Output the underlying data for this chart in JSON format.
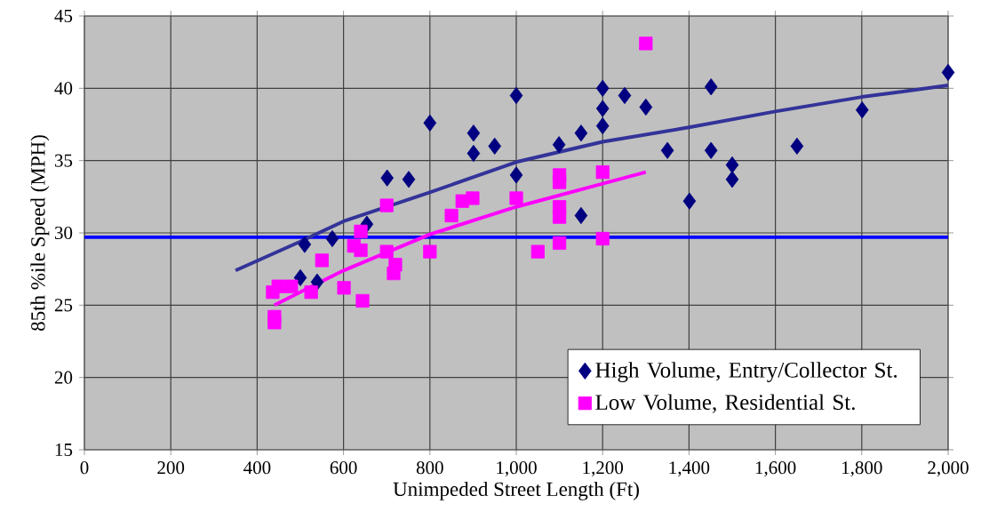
{
  "chart_data": {
    "type": "scatter",
    "xlabel": "Unimpeded  Street  Length  (Ft)",
    "ylabel": "85th  %ile  Speed  (MPH)",
    "xlim": [
      0,
      2000
    ],
    "ylim": [
      15,
      45
    ],
    "xticks": [
      0,
      200,
      400,
      600,
      800,
      {
        "value": 1000,
        "label": "1,000"
      },
      {
        "value": 1200,
        "label": "1,200"
      },
      {
        "value": 1400,
        "label": "1,400"
      },
      {
        "value": 1600,
        "label": "1,600"
      },
      {
        "value": 1800,
        "label": "1,800"
      },
      {
        "value": 2000,
        "label": "2,000"
      }
    ],
    "yticks": [
      15,
      20,
      25,
      30,
      35,
      40,
      45
    ],
    "grid": true,
    "legend": "bottom right",
    "ref_lines": [
      {
        "axis": "y",
        "value": 29.7,
        "color": "#0000ff"
      }
    ],
    "series": [
      {
        "name": "High Volume, Entry/Collector St.",
        "marker": "diamond",
        "color": "#000080",
        "x": [
          500,
          510,
          539,
          574,
          654,
          701,
          751,
          800,
          901,
          901,
          950,
          1000,
          1000,
          1099,
          1150,
          1150,
          1200,
          1200,
          1200,
          1251,
          1300,
          1350,
          1401,
          1451,
          1451,
          1500,
          1500,
          1650,
          1801,
          2000
        ],
        "values": [
          26.9,
          29.2,
          26.6,
          29.6,
          30.6,
          33.8,
          33.7,
          37.6,
          36.9,
          35.5,
          36.0,
          39.5,
          34.0,
          36.1,
          36.9,
          31.2,
          40.0,
          38.6,
          37.4,
          39.5,
          38.7,
          35.7,
          32.2,
          40.1,
          35.7,
          34.7,
          33.7,
          36.0,
          38.5,
          41.1
        ]
      },
      {
        "name": "Low Volume, Residential St.",
        "marker": "square",
        "color": "#ff00ff",
        "x": [
          436,
          440,
          440,
          449,
          479,
          525,
          550,
          601,
          624,
          640,
          640,
          644,
          700,
          700,
          716,
          720,
          800,
          850,
          875,
          899,
          1000,
          1050,
          1100,
          1100,
          1100,
          1100,
          1100,
          1200,
          1200,
          1300
        ],
        "values": [
          25.9,
          24.2,
          23.8,
          26.3,
          26.3,
          25.9,
          28.1,
          26.2,
          29.1,
          30.1,
          28.8,
          25.3,
          31.9,
          28.7,
          27.2,
          27.8,
          28.7,
          31.2,
          32.2,
          32.4,
          32.4,
          28.7,
          34.0,
          33.5,
          31.8,
          31.1,
          29.3,
          34.2,
          29.6,
          43.1
        ]
      },
      {
        "type": "line",
        "color": "#333399",
        "x": [
          350,
          500,
          600,
          800,
          1000,
          1200,
          1400,
          1600,
          1800,
          2000
        ],
        "values": [
          27.4,
          29.4,
          30.8,
          32.8,
          34.9,
          36.3,
          37.3,
          38.4,
          39.4,
          40.2
        ]
      },
      {
        "type": "line",
        "color": "#ff00ff",
        "x": [
          440,
          600,
          800,
          1000,
          1200,
          1300
        ],
        "values": [
          25.0,
          27.4,
          29.9,
          31.8,
          33.4,
          34.2
        ]
      }
    ]
  }
}
